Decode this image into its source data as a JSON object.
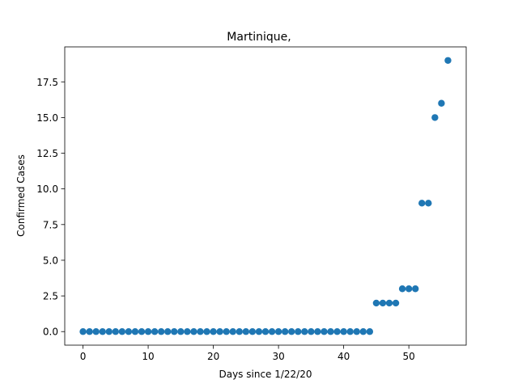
{
  "chart_data": {
    "type": "scatter",
    "title": "Martinique,",
    "xlabel": "Days since 1/22/20",
    "ylabel": "Confirmed Cases",
    "xlim": [
      -2.8,
      58.8
    ],
    "ylim": [
      -0.95,
      19.95
    ],
    "xticks": [
      0,
      10,
      20,
      30,
      40,
      50
    ],
    "yticks": [
      0.0,
      2.5,
      5.0,
      7.5,
      10.0,
      12.5,
      15.0,
      17.5
    ],
    "xtick_labels": [
      "0",
      "10",
      "20",
      "30",
      "40",
      "50"
    ],
    "ytick_labels": [
      "0.0",
      "2.5",
      "5.0",
      "7.5",
      "10.0",
      "12.5",
      "15.0",
      "17.5"
    ],
    "grid": false,
    "marker_color": "#1f77b4",
    "series": [
      {
        "x": [
          0,
          1,
          2,
          3,
          4,
          5,
          6,
          7,
          8,
          9,
          10,
          11,
          12,
          13,
          14,
          15,
          16,
          17,
          18,
          19,
          20,
          21,
          22,
          23,
          24,
          25,
          26,
          27,
          28,
          29,
          30,
          31,
          32,
          33,
          34,
          35,
          36,
          37,
          38,
          39,
          40,
          41,
          42,
          43,
          44,
          45,
          46,
          47,
          48,
          49,
          50,
          51,
          52,
          53,
          54,
          55,
          56
        ],
        "y": [
          0,
          0,
          0,
          0,
          0,
          0,
          0,
          0,
          0,
          0,
          0,
          0,
          0,
          0,
          0,
          0,
          0,
          0,
          0,
          0,
          0,
          0,
          0,
          0,
          0,
          0,
          0,
          0,
          0,
          0,
          0,
          0,
          0,
          0,
          0,
          0,
          0,
          0,
          0,
          0,
          0,
          0,
          0,
          0,
          0,
          2,
          2,
          2,
          2,
          3,
          3,
          3,
          9,
          9,
          15,
          16,
          19
        ]
      }
    ]
  }
}
